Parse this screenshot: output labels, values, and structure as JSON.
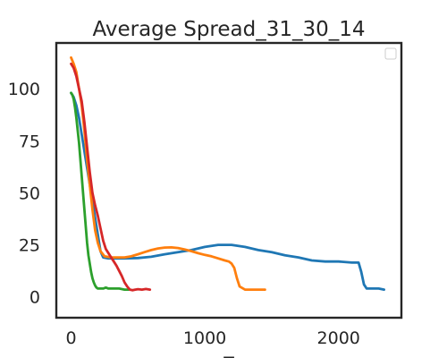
{
  "chart_data": {
    "type": "line",
    "title": "Average Spread_31_30_14",
    "xlabel": "T",
    "ylabel": "",
    "xlim": [
      -110,
      2470
    ],
    "ylim": [
      -10,
      122
    ],
    "xticks": [
      0,
      1000,
      2000
    ],
    "xtick_labels": [
      "0",
      "1000",
      "2000"
    ],
    "yticks": [
      0,
      25,
      50,
      75,
      100
    ],
    "ytick_labels": [
      "0",
      "25",
      "50",
      "75",
      "100"
    ],
    "grid": false,
    "legend": {
      "placement": "top-right",
      "entries": []
    },
    "series": [
      {
        "color": "#1f77b4",
        "x": [
          0,
          20,
          40,
          60,
          80,
          100,
          120,
          140,
          160,
          180,
          200,
          220,
          240,
          280,
          350,
          400,
          500,
          600,
          700,
          800,
          900,
          1000,
          1100,
          1200,
          1300,
          1400,
          1500,
          1600,
          1700,
          1800,
          1900,
          2000,
          2100,
          2150,
          2170,
          2190,
          2210,
          2250,
          2300,
          2340
        ],
        "y": [
          98,
          96,
          92,
          86,
          78,
          70,
          62,
          54,
          46,
          38,
          30,
          22,
          19,
          18.5,
          18.5,
          18.5,
          18.7,
          19.3,
          20.5,
          21.5,
          22.5,
          24,
          25,
          25,
          24,
          22.5,
          21.5,
          20,
          19,
          17.5,
          17,
          17,
          16.5,
          16.5,
          12,
          6,
          4,
          4,
          4,
          3.5
        ]
      },
      {
        "color": "#ff7f0e",
        "x": [
          0,
          20,
          40,
          60,
          80,
          100,
          120,
          140,
          160,
          180,
          200,
          220,
          250,
          300,
          350,
          400,
          450,
          500,
          550,
          600,
          650,
          700,
          750,
          800,
          850,
          900,
          950,
          1000,
          1050,
          1100,
          1150,
          1180,
          1200,
          1220,
          1240,
          1260,
          1300,
          1350,
          1400,
          1450
        ],
        "y": [
          115,
          112,
          108,
          100,
          92,
          80,
          66,
          54,
          42,
          32,
          26,
          22,
          19.5,
          19,
          19,
          19,
          19.5,
          20.5,
          21.5,
          22.5,
          23.3,
          23.7,
          23.8,
          23.5,
          22.8,
          22,
          21,
          20.2,
          19.5,
          18.5,
          17.5,
          17,
          16,
          14,
          9,
          5,
          3.5,
          3.5,
          3.5,
          3.5
        ]
      },
      {
        "color": "#2ca02c",
        "x": [
          0,
          10,
          20,
          30,
          40,
          50,
          60,
          70,
          80,
          90,
          100,
          110,
          120,
          130,
          140,
          150,
          160,
          170,
          180,
          190,
          200,
          210,
          220,
          240,
          260,
          280,
          300,
          330,
          360,
          400,
          430
        ],
        "y": [
          98,
          97,
          95,
          91,
          86,
          80,
          74,
          66,
          58,
          50,
          42,
          34,
          26,
          20,
          16,
          12,
          9,
          7,
          5.5,
          4.5,
          4,
          4,
          4,
          4,
          4.5,
          4,
          4,
          4,
          4,
          3.5,
          3.5
        ]
      },
      {
        "color": "#d62728",
        "x": [
          0,
          20,
          40,
          60,
          80,
          100,
          120,
          140,
          160,
          180,
          200,
          220,
          240,
          260,
          280,
          300,
          320,
          340,
          360,
          380,
          400,
          420,
          440,
          460,
          480,
          500,
          530,
          560,
          590
        ],
        "y": [
          112,
          110,
          106,
          100,
          94,
          84,
          72,
          60,
          50,
          44,
          39,
          33,
          27,
          23,
          21,
          19,
          17,
          15,
          12.5,
          10,
          7,
          5,
          3.5,
          3.2,
          3.5,
          3.7,
          3.5,
          3.8,
          3.5
        ]
      }
    ]
  }
}
